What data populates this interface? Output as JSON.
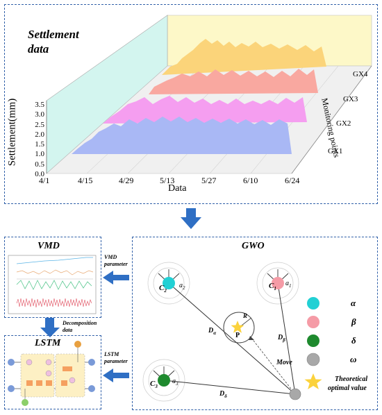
{
  "settlement": {
    "title_line1": "Settlement",
    "title_line2": "data",
    "y_axis_label": "Settlement(mm)",
    "y_ticks": [
      "3.5",
      "3.0",
      "2.5",
      "2.0",
      "1.5",
      "1.0",
      "0.5",
      "0.0"
    ],
    "x_axis_label": "Data",
    "x_ticks": [
      "4/1",
      "4/15",
      "4/29",
      "5/13",
      "5/27",
      "6/10",
      "6/24"
    ],
    "z_axis_label": "Monitoring points",
    "series": [
      {
        "name": "GX1",
        "color": "#a9b8f5"
      },
      {
        "name": "GX2",
        "color": "#f59ef0"
      },
      {
        "name": "GX3",
        "color": "#f9a8a0"
      },
      {
        "name": "GX4",
        "color": "#fbd47a"
      }
    ]
  },
  "vmd": {
    "title": "VMD",
    "param_label_1": "VMD",
    "param_label_2": "parameter",
    "decomp_label_1": "Decomposition",
    "decomp_label_2": "data"
  },
  "lstm": {
    "title": "LSTM",
    "param_label_1": "LSTM",
    "param_label_2": "parameter"
  },
  "gwo": {
    "title": "GWO",
    "wolves": [
      {
        "c": "C",
        "csub": "2",
        "a": "a",
        "asub": "2",
        "color": "#22d0d4"
      },
      {
        "c": "C",
        "csub": "1",
        "a": "a",
        "asub": "1",
        "color": "#f59ba6"
      },
      {
        "c": "C",
        "csub": "3",
        "a": "a",
        "asub": "3",
        "color": "#1e8a2e"
      }
    ],
    "prey_label": "P",
    "radius_label": "R",
    "d_alpha": "D",
    "d_alpha_sub": "α",
    "d_beta": "D",
    "d_beta_sub": "β",
    "d_delta": "D",
    "d_delta_sub": "δ",
    "move_label": "Move",
    "legend": [
      {
        "symbol": "α",
        "color": "#22d0d4"
      },
      {
        "symbol": "β",
        "color": "#f59ba6"
      },
      {
        "symbol": "δ",
        "color": "#1e8a2e"
      },
      {
        "symbol": "ω",
        "color": "#a8a8a8"
      }
    ],
    "star_label_1": "Theoretical",
    "star_label_2": "optimal value"
  },
  "colors": {
    "dashed_border": "#2f5fa8",
    "arrow": "#2f6fc4",
    "star": "#fbd23c"
  }
}
